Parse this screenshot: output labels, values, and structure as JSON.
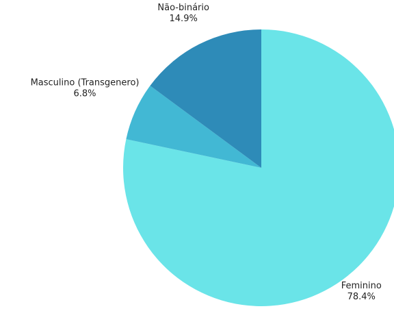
{
  "chart_data": {
    "type": "pie",
    "categories": [
      "Feminino",
      "Masculino (Transgenero)",
      "Não-binário"
    ],
    "values": [
      78.4,
      6.8,
      14.9
    ],
    "value_labels": [
      "78.4%",
      "6.8%",
      "14.9%"
    ],
    "colors": [
      "#6ae4e8",
      "#42b8d4",
      "#2e8bb8"
    ]
  }
}
